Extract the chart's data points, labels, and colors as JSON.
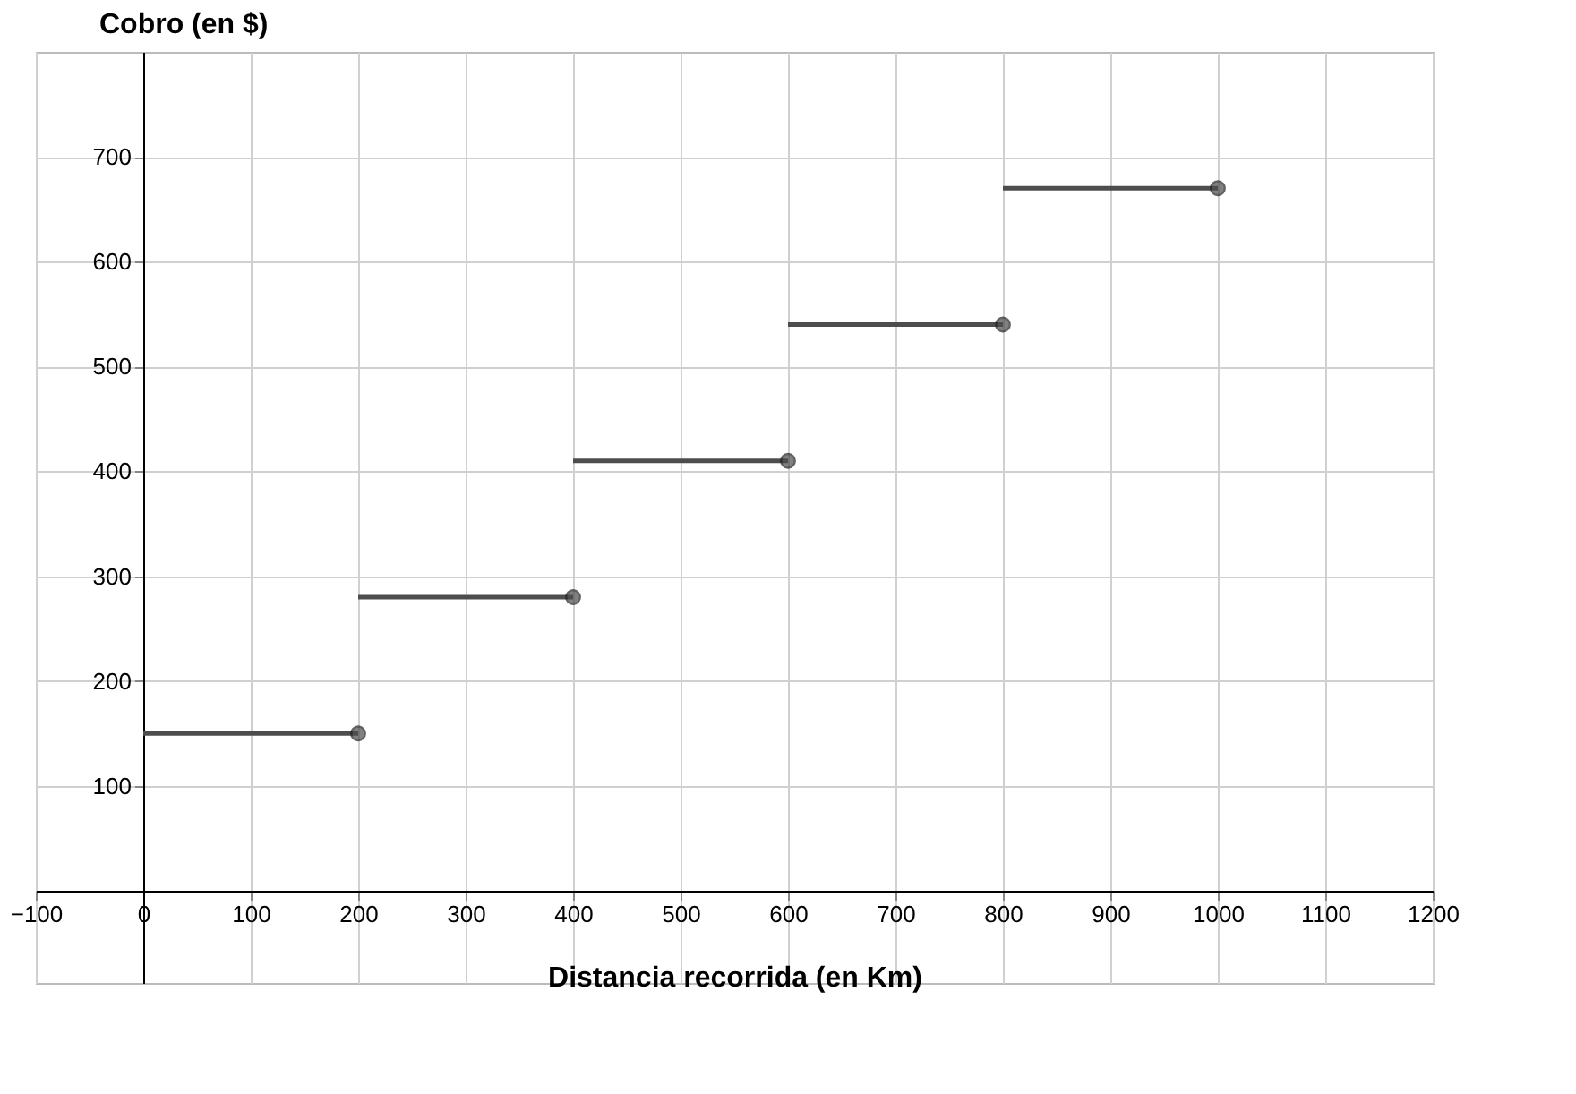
{
  "chart_data": {
    "type": "line",
    "xlabel": "Distancia recorrida (en Km)",
    "ylabel": "Cobro (en $)",
    "xlim": [
      -100,
      1200
    ],
    "ylim": [
      -88,
      800
    ],
    "xticks": [
      -100,
      0,
      100,
      200,
      300,
      400,
      500,
      600,
      700,
      800,
      900,
      1000,
      1100,
      1200
    ],
    "yticks": [
      100,
      200,
      300,
      400,
      500,
      600,
      700
    ],
    "grid": true,
    "line_style": "solid",
    "series": [
      {
        "color": "#4d4d4d",
        "x": [
          0,
          200
        ],
        "values": [
          150,
          150
        ]
      },
      {
        "color": "#4d4d4d",
        "x": [
          200,
          400
        ],
        "values": [
          280,
          280
        ]
      },
      {
        "color": "#4d4d4d",
        "x": [
          400,
          600
        ],
        "values": [
          410,
          410
        ]
      },
      {
        "color": "#4d4d4d",
        "x": [
          600,
          800
        ],
        "values": [
          540,
          540
        ]
      },
      {
        "color": "#4d4d4d",
        "x": [
          800,
          1000
        ],
        "values": [
          670,
          670
        ]
      },
      {
        "type": "scatter",
        "color": "#4d4d4d",
        "marker": "circle",
        "x": [
          200,
          400,
          600,
          800,
          1000
        ],
        "values": [
          150,
          280,
          410,
          540,
          670
        ]
      }
    ]
  }
}
